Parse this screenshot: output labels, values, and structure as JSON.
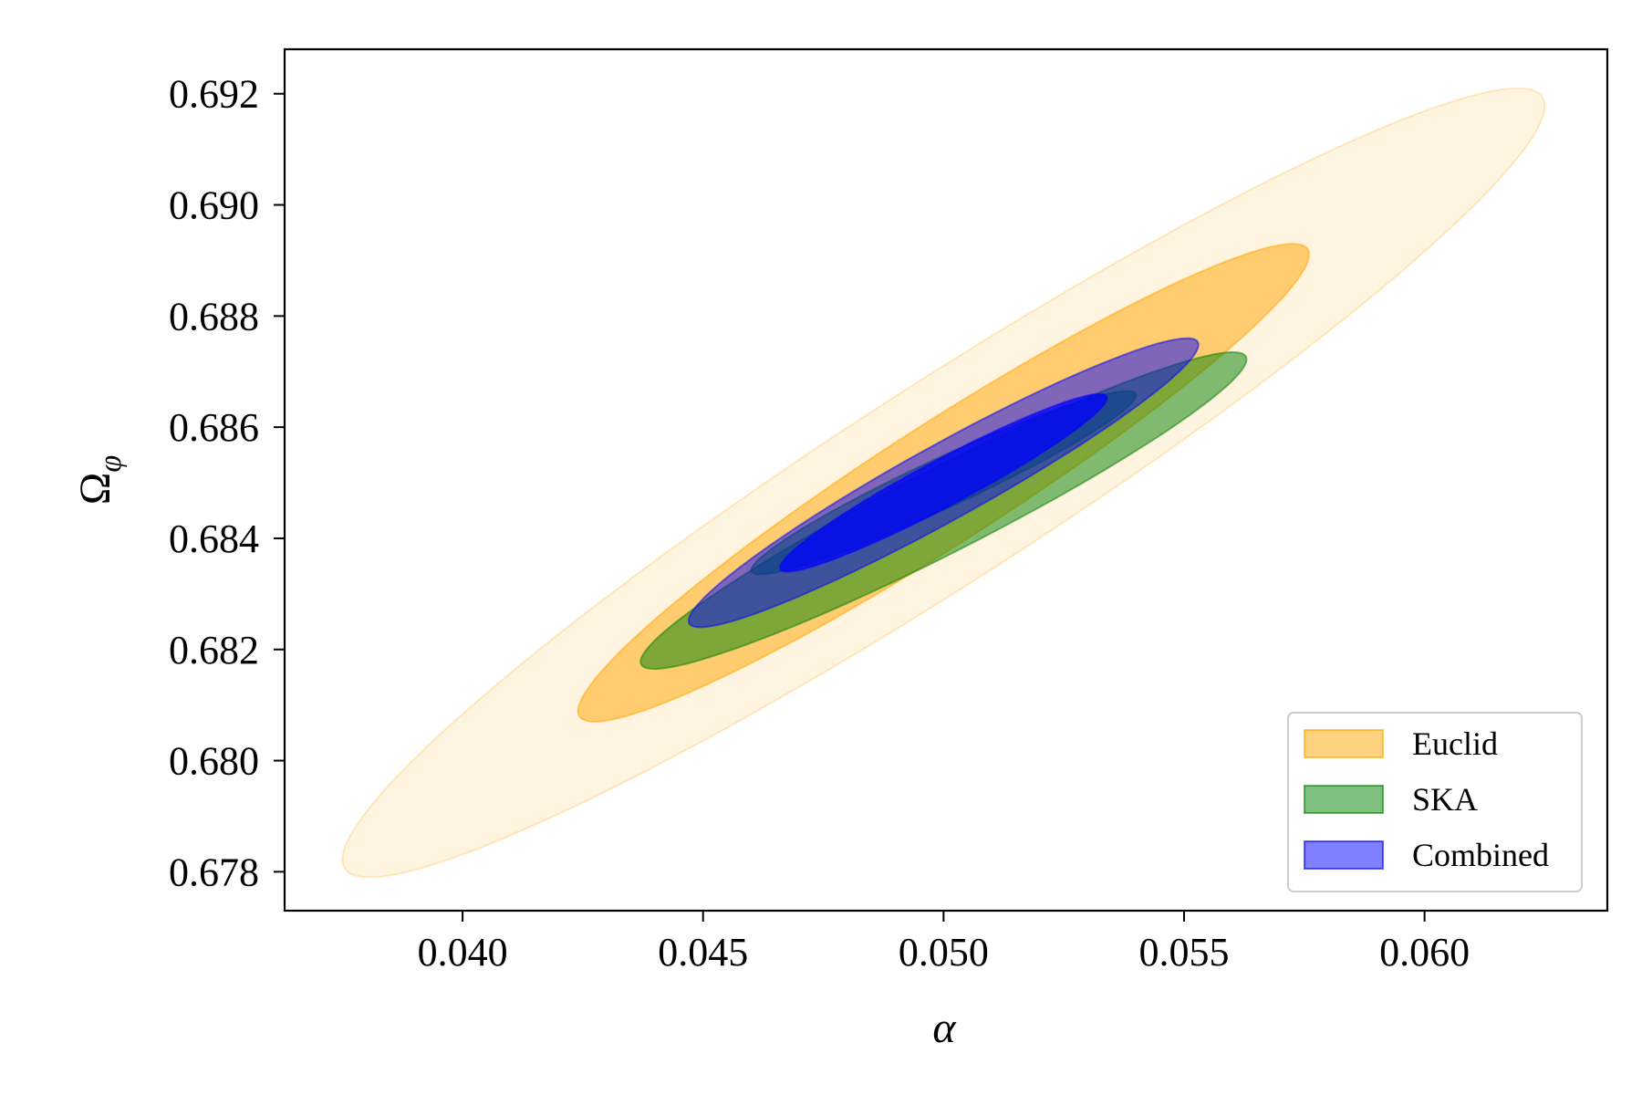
{
  "chart_data": {
    "type": "contour",
    "xlabel": "α",
    "ylabel_main": "Ω",
    "ylabel_sub": "φ",
    "xlim": [
      0.0363,
      0.0638
    ],
    "ylim": [
      0.6773,
      0.6928
    ],
    "xticks": [
      0.04,
      0.045,
      0.05,
      0.055,
      0.06
    ],
    "xtick_labels": [
      "0.040",
      "0.045",
      "0.050",
      "0.055",
      "0.060"
    ],
    "yticks": [
      0.678,
      0.68,
      0.682,
      0.684,
      0.686,
      0.688,
      0.69,
      0.692
    ],
    "ytick_labels": [
      "0.678",
      "0.680",
      "0.682",
      "0.684",
      "0.686",
      "0.688",
      "0.690",
      "0.692"
    ],
    "legend_position": "lower-right",
    "series": [
      {
        "name": "Euclid",
        "color": "#ffa500",
        "contours": [
          {
            "level": "2sigma",
            "opacity": 0.12,
            "center": [
              0.05,
              0.685
            ],
            "x_extent": [
              0.0375,
              0.0625
            ],
            "y_extent": [
              0.6779,
              0.6921
            ]
          },
          {
            "level": "1sigma",
            "opacity": 0.5,
            "center": [
              0.05,
              0.685
            ],
            "x_extent": [
              0.0424,
              0.0576
            ],
            "y_extent": [
              0.6807,
              0.6893
            ]
          }
        ]
      },
      {
        "name": "SKA",
        "color": "#008000",
        "contours": [
          {
            "level": "2sigma",
            "opacity": 0.5,
            "center": [
              0.05,
              0.6845
            ],
            "x_extent": [
              0.0437,
              0.0563
            ],
            "y_extent": [
              0.6822,
              0.6879
            ]
          },
          {
            "level": "1sigma",
            "opacity": 0.5,
            "center": [
              0.05,
              0.685
            ],
            "x_extent": [
              0.046,
              0.054
            ],
            "y_extent": [
              0.6835,
              0.6868
            ]
          }
        ]
      },
      {
        "name": "Combined",
        "color": "#0000ff",
        "contours": [
          {
            "level": "2sigma",
            "opacity": 0.5,
            "center": [
              0.05,
              0.685
            ],
            "x_extent": [
              0.0447,
              0.0553
            ],
            "y_extent": [
              0.6824,
              0.6876
            ]
          },
          {
            "level": "1sigma",
            "opacity": 0.75,
            "center": [
              0.05,
              0.685
            ],
            "x_extent": [
              0.0466,
              0.0534
            ],
            "y_extent": [
              0.6834,
              0.6866
            ]
          }
        ]
      }
    ]
  }
}
